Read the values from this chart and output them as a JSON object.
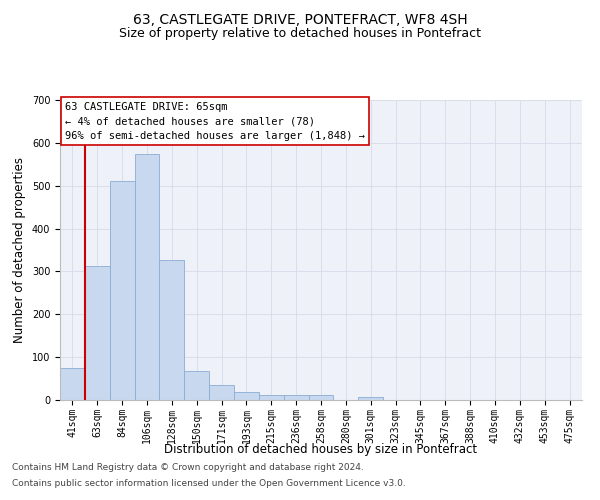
{
  "title": "63, CASTLEGATE DRIVE, PONTEFRACT, WF8 4SH",
  "subtitle": "Size of property relative to detached houses in Pontefract",
  "xlabel": "Distribution of detached houses by size in Pontefract",
  "ylabel": "Number of detached properties",
  "categories": [
    "41sqm",
    "63sqm",
    "84sqm",
    "106sqm",
    "128sqm",
    "150sqm",
    "171sqm",
    "193sqm",
    "215sqm",
    "236sqm",
    "258sqm",
    "280sqm",
    "301sqm",
    "323sqm",
    "345sqm",
    "367sqm",
    "388sqm",
    "410sqm",
    "432sqm",
    "453sqm",
    "475sqm"
  ],
  "values": [
    75,
    313,
    510,
    575,
    327,
    68,
    35,
    18,
    12,
    11,
    11,
    0,
    8,
    0,
    0,
    0,
    0,
    0,
    0,
    0,
    0
  ],
  "bar_color": "#c8d8ee",
  "bar_edge_color": "#8aadd4",
  "annotation_line1": "63 CASTLEGATE DRIVE: 65sqm",
  "annotation_line2": "← 4% of detached houses are smaller (78)",
  "annotation_line3": "96% of semi-detached houses are larger (1,848) →",
  "annotation_box_color": "#ffffff",
  "annotation_box_edge_color": "#cc0000",
  "ylim": [
    0,
    700
  ],
  "yticks": [
    0,
    100,
    200,
    300,
    400,
    500,
    600,
    700
  ],
  "vline_color": "#cc0000",
  "vline_x": 1,
  "footnote1": "Contains HM Land Registry data © Crown copyright and database right 2024.",
  "footnote2": "Contains public sector information licensed under the Open Government Licence v3.0.",
  "title_fontsize": 10,
  "subtitle_fontsize": 9,
  "xlabel_fontsize": 8.5,
  "ylabel_fontsize": 8.5,
  "tick_fontsize": 7,
  "annotation_fontsize": 7.5,
  "footnote_fontsize": 6.5,
  "grid_color": "#d5dce8",
  "bg_color": "#eef2f8"
}
